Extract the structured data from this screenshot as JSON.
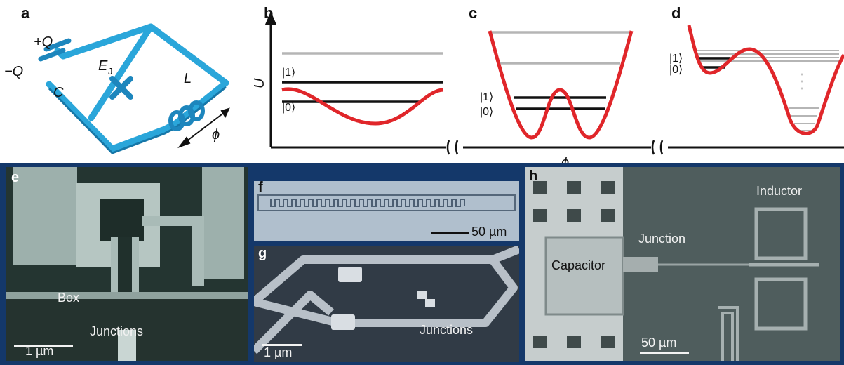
{
  "panels": {
    "a": {
      "label": "a",
      "charge_pos": "+Q",
      "charge_neg": "−Q",
      "capacitor": "C",
      "josephson_energy": "E",
      "josephson_sub": "J",
      "inductor": "L",
      "flux": "ϕ"
    },
    "b": {
      "label": "b",
      "y_axis": "U",
      "state1": "|1⟩",
      "state0": "|0⟩"
    },
    "c": {
      "label": "c",
      "state1": "|1⟩",
      "state0": "|0⟩",
      "x_axis": "ϕ"
    },
    "d": {
      "label": "d",
      "state1": "|1⟩",
      "state0": "|0⟩"
    },
    "e": {
      "label": "e",
      "box": "Box",
      "junctions": "Junctions",
      "scale": "1 µm"
    },
    "f": {
      "label": "f",
      "scale": "50 µm"
    },
    "g": {
      "label": "g",
      "junctions": "Junctions",
      "scale": "1 µm"
    },
    "h": {
      "label": "h",
      "inductor": "Inductor",
      "junction": "Junction",
      "capacitor": "Capacitor",
      "scale": "50 µm"
    }
  },
  "colors": {
    "circuit": "#2aa6da",
    "potential": "#e0262a",
    "levels_dark": "#111111",
    "levels_light": "#b5b5b5",
    "frame": "#14386a"
  }
}
